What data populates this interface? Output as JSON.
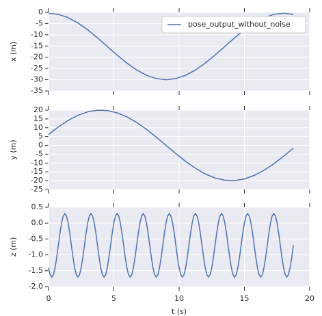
{
  "chart_data": [
    {
      "type": "line",
      "ylabel": "x (m)",
      "legend": "upper right",
      "grid": true,
      "xlim": [
        0,
        20
      ],
      "ylim": [
        -35,
        0
      ],
      "yticks": [
        0,
        -5,
        -10,
        -15,
        -20,
        -25,
        -30,
        -35
      ],
      "x": [
        0,
        0.75,
        1.5,
        2.25,
        3,
        3.75,
        4.5,
        5.25,
        6,
        6.75,
        7.5,
        8.25,
        9,
        9.75,
        10.5,
        11.25,
        12,
        12.75,
        13.5,
        14.25,
        15,
        15.75,
        16.5,
        17.25,
        18,
        18.75
      ],
      "series": [
        {
          "name": "pose_output_without_noise",
          "color": "#4c72b0",
          "values": [
            -0.4,
            -0.9,
            -2.38,
            -4.74,
            -7.8,
            -11.37,
            -15.2,
            -19.03,
            -22.6,
            -25.66,
            -28.02,
            -29.5,
            -30.0,
            -29.5,
            -28.02,
            -25.66,
            -22.6,
            -19.03,
            -15.2,
            -11.37,
            -7.8,
            -4.74,
            -2.38,
            -0.9,
            -0.4,
            -0.9
          ]
        }
      ]
    },
    {
      "type": "line",
      "ylabel": "y (m)",
      "grid": true,
      "xlim": [
        0,
        20
      ],
      "ylim": [
        -25,
        20
      ],
      "yticks": [
        20,
        15,
        10,
        5,
        0,
        -5,
        -10,
        -15,
        -20,
        -25
      ],
      "x": [
        0,
        0.75,
        1.5,
        2.25,
        3,
        3.75,
        4.5,
        5.25,
        6,
        6.75,
        7.5,
        8.25,
        9,
        9.75,
        10.5,
        11.25,
        12,
        12.75,
        13.5,
        14.25,
        15,
        15.75,
        16.5,
        17.25,
        18,
        18.75
      ],
      "series": [
        {
          "color": "#4c72b0",
          "values": [
            6.18,
            10.45,
            14.14,
            17.05,
            19.02,
            19.94,
            19.75,
            18.48,
            16.18,
            12.99,
            9.08,
            4.67,
            0,
            -4.67,
            -9.08,
            -12.99,
            -16.18,
            -18.48,
            -19.75,
            -19.94,
            -19.02,
            -17.05,
            -14.14,
            -10.45,
            -6.18,
            -1.57
          ]
        }
      ]
    },
    {
      "type": "line",
      "ylabel": "z (m)",
      "xlabel": "t (s)",
      "grid": true,
      "xlim": [
        0,
        20
      ],
      "xticks": [
        0,
        5,
        10,
        15,
        20
      ],
      "ylim": [
        -2.0,
        0.5
      ],
      "yticks": [
        0.5,
        {
          "value": 0,
          "label": "0.0"
        },
        -0.5,
        {
          "value": -1,
          "label": "-1.0"
        },
        -1.5,
        {
          "value": -2,
          "label": "-2.0"
        }
      ],
      "x": [
        0,
        0.125,
        0.25,
        0.375,
        0.5,
        0.625,
        0.75,
        0.875,
        1,
        1.125,
        1.25,
        1.375,
        1.5,
        1.625,
        1.75,
        1.875,
        2,
        2.125,
        2.25,
        2.375,
        2.5,
        2.625,
        2.75,
        2.875,
        3,
        3.125,
        3.25,
        3.375,
        3.5,
        3.625,
        3.75,
        3.875,
        4,
        4.125,
        4.25,
        4.375,
        4.5,
        4.625,
        4.75,
        4.875,
        5,
        5.125,
        5.25,
        5.375,
        5.5,
        5.625,
        5.75,
        5.875,
        6,
        6.125,
        6.25,
        6.375,
        6.5,
        6.625,
        6.75,
        6.875,
        7,
        7.125,
        7.25,
        7.375,
        7.5,
        7.625,
        7.75,
        7.875,
        8,
        8.125,
        8.25,
        8.375,
        8.5,
        8.625,
        8.75,
        8.875,
        9,
        9.125,
        9.25,
        9.375,
        9.5,
        9.625,
        9.75,
        9.875,
        10,
        10.125,
        10.25,
        10.375,
        10.5,
        10.625,
        10.75,
        10.875,
        11,
        11.125,
        11.25,
        11.375,
        11.5,
        11.625,
        11.75,
        11.875,
        12,
        12.125,
        12.25,
        12.375,
        12.5,
        12.625,
        12.75,
        12.875,
        13,
        13.125,
        13.25,
        13.375,
        13.5,
        13.625,
        13.75,
        13.875,
        14,
        14.125,
        14.25,
        14.375,
        14.5,
        14.625,
        14.75,
        14.875,
        15,
        15.125,
        15.25,
        15.375,
        15.5,
        15.625,
        15.75,
        15.875,
        16,
        16.125,
        16.25,
        16.375,
        16.5,
        16.625,
        16.75,
        16.875,
        17,
        17.125,
        17.25,
        17.375,
        17.5,
        17.625,
        17.75,
        17.875,
        18,
        18.125,
        18.25,
        18.375,
        18.5,
        18.625,
        18.75
      ],
      "series": [
        {
          "color": "#4c72b0",
          "values": [
            -1.407,
            -1.624,
            -1.7,
            -1.624,
            -1.407,
            -1.083,
            -0.7,
            -0.317,
            0.007,
            0.224,
            0.3,
            0.224,
            0.007,
            -0.317,
            -0.7,
            -1.083,
            -1.407,
            -1.624,
            -1.7,
            -1.624,
            -1.407,
            -1.083,
            -0.7,
            -0.317,
            0.007,
            0.224,
            0.3,
            0.224,
            0.007,
            -0.317,
            -0.7,
            -1.083,
            -1.407,
            -1.624,
            -1.7,
            -1.624,
            -1.407,
            -1.083,
            -0.7,
            -0.317,
            0.007,
            0.224,
            0.3,
            0.224,
            0.007,
            -0.317,
            -0.7,
            -1.083,
            -1.407,
            -1.624,
            -1.7,
            -1.624,
            -1.407,
            -1.083,
            -0.7,
            -0.317,
            0.007,
            0.224,
            0.3,
            0.224,
            0.007,
            -0.317,
            -0.7,
            -1.083,
            -1.407,
            -1.624,
            -1.7,
            -1.624,
            -1.407,
            -1.083,
            -0.7,
            -0.317,
            0.007,
            0.224,
            0.3,
            0.224,
            0.007,
            -0.317,
            -0.7,
            -1.083,
            -1.407,
            -1.624,
            -1.7,
            -1.624,
            -1.407,
            -1.083,
            -0.7,
            -0.317,
            0.007,
            0.224,
            0.3,
            0.224,
            0.007,
            -0.317,
            -0.7,
            -1.083,
            -1.407,
            -1.624,
            -1.7,
            -1.624,
            -1.407,
            -1.083,
            -0.7,
            -0.317,
            0.007,
            0.224,
            0.3,
            0.224,
            0.007,
            -0.317,
            -0.7,
            -1.083,
            -1.407,
            -1.624,
            -1.7,
            -1.624,
            -1.407,
            -1.083,
            -0.7,
            -0.317,
            0.007,
            0.224,
            0.3,
            0.224,
            0.007,
            -0.317,
            -0.7,
            -1.083,
            -1.407,
            -1.624,
            -1.7,
            -1.624,
            -1.407,
            -1.083,
            -0.7,
            -0.317,
            0.007,
            0.224,
            0.3,
            0.224,
            0.007,
            -0.317,
            -0.7,
            -1.083,
            -1.407,
            -1.624,
            -1.7,
            -1.624,
            -1.407,
            -1.083,
            -0.7
          ]
        }
      ]
    }
  ]
}
